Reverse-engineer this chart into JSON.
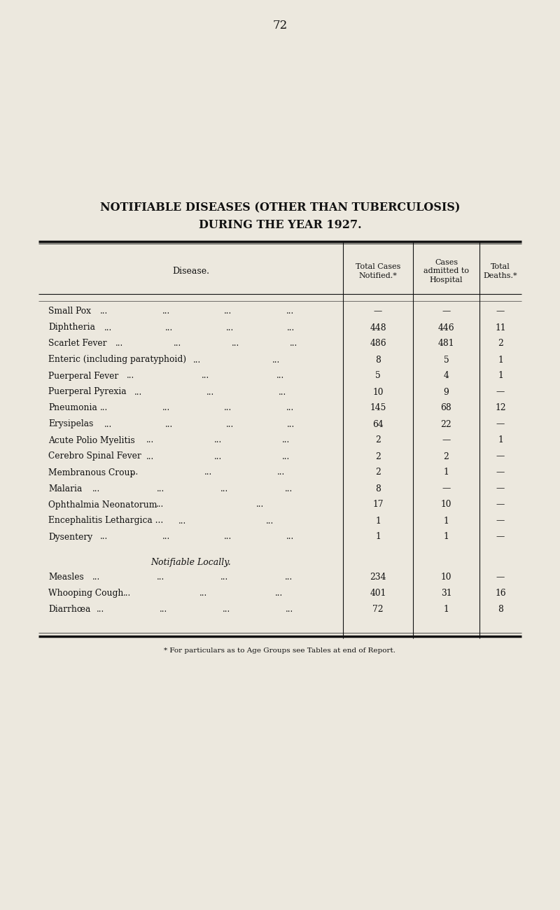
{
  "page_number": "72",
  "title_line1": "NOTIFIABLE DISEASES (OTHER THAN TUBERCULOSIS)",
  "title_line2": "DURING THE YEAR 1927.",
  "col_header_disease": "Disease.",
  "col_header_cases": "Total Cases\nNotified.*",
  "col_header_hosp": "Cases\nadmitted to\nHospital",
  "col_header_deaths": "Total\nDeaths.*",
  "diseases": [
    "Small Pox",
    "Diphtheria",
    "Scarlet Fever",
    "Enteric (including paratyphoid)",
    "Puerperal Fever",
    "Puerperal Pyrexia",
    "Pneumonia",
    "Erysipelas",
    "Acute Polio Myelitis",
    "Cerebro Spinal Fever",
    "Membranous Croup",
    "Malaria",
    "Ophthalmia Neonatorum",
    "Encephalitis Lethargica ...",
    "Dysentery"
  ],
  "disease_ndots": [
    4,
    4,
    4,
    2,
    3,
    3,
    4,
    4,
    3,
    3,
    3,
    4,
    2,
    2,
    4
  ],
  "total_cases": [
    "—",
    "448",
    "486",
    "8",
    "5",
    "10",
    "145",
    "64",
    "2",
    "2",
    "2",
    "8",
    "17",
    "1",
    "1"
  ],
  "cases_hospital": [
    "—",
    "446",
    "481",
    "5",
    "4",
    "9",
    "68",
    "22",
    "—",
    "2",
    "1",
    "—",
    "10",
    "1",
    "1"
  ],
  "total_deaths": [
    "—",
    "11",
    "2",
    "1",
    "1",
    "—",
    "12",
    "—",
    "1",
    "—",
    "—",
    "—",
    "—",
    "—",
    "—"
  ],
  "notifiable_locally_label": "Notifiable Locally.",
  "local_diseases": [
    "Measles",
    "Whooping Cough",
    "Diarrhœa"
  ],
  "local_ndots": [
    4,
    3,
    4
  ],
  "local_total_cases": [
    "234",
    "401",
    "72"
  ],
  "local_cases_hospital": [
    "10",
    "31",
    "1"
  ],
  "local_total_deaths": [
    "—",
    "16",
    "8"
  ],
  "footnote": "* For particulars as to Age Groups see Tables at end of Report.",
  "bg_color": "#ece8de",
  "text_color": "#111111",
  "line_color": "#111111"
}
